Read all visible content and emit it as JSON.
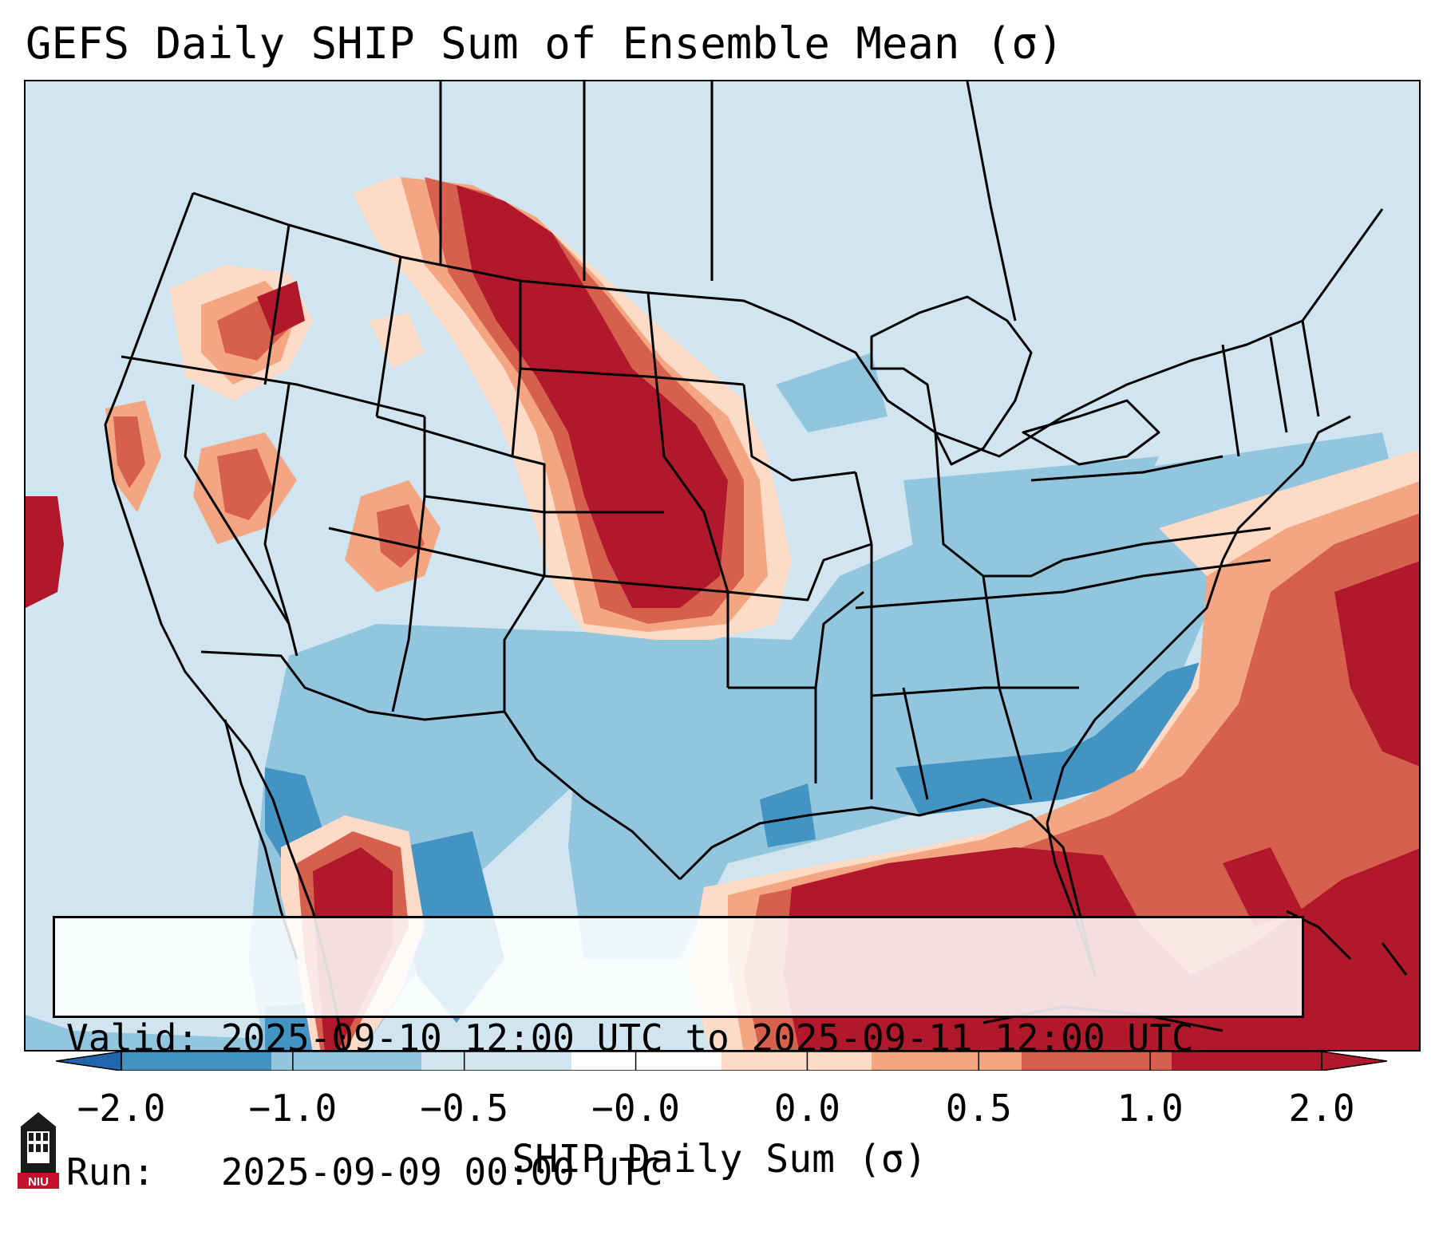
{
  "title": "GEFS Daily SHIP Sum of Ensemble Mean (σ)",
  "info": {
    "valid_line": "Valid: 2025-09-10 12:00 UTC to 2025-09-11 12:00 UTC",
    "run_line": "Run:   2025-09-09 00:00 UTC"
  },
  "colorbar": {
    "label": "SHIP Daily Sum (σ)",
    "ticks": [
      "−2.0",
      "−1.0",
      "−0.5",
      "−0.0",
      "0.0",
      "0.5",
      "1.0",
      "2.0"
    ],
    "colors": [
      "#4393c3",
      "#92c5de",
      "#d1e5f0",
      "#ffffff",
      "#fddbc7",
      "#f4a582",
      "#d6604d",
      "#b2182b"
    ],
    "extend_low_color": "#2166ac",
    "extend_high_color": "#b2182b"
  },
  "logo": {
    "text": "NIU"
  }
}
